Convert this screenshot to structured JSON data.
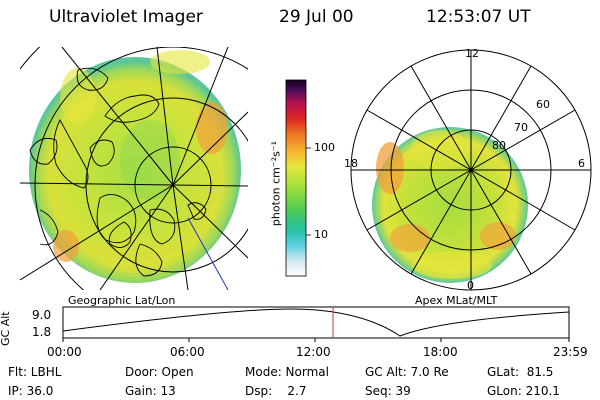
{
  "header": {
    "instrument": "Ultraviolet Imager",
    "date": "29 Jul 00",
    "time": "12:53:07 UT"
  },
  "left_panel": {
    "caption": "Geographic Lat/Lon"
  },
  "right_panel": {
    "caption": "Apex MLat/MLT",
    "mlt_labels": {
      "top": "12",
      "left": "18",
      "right": "6",
      "bottom": "0"
    },
    "mlat_labels": [
      "60",
      "70",
      "80"
    ]
  },
  "colorbar": {
    "label": "photon cm⁻²s⁻¹",
    "ticks": [
      "100",
      "10"
    ]
  },
  "altitude_plot": {
    "ylabel": "GC Alt",
    "yticks": [
      "9.0",
      "1.8"
    ],
    "xticks": [
      "00:00",
      "06:00",
      "12:00",
      "18:00",
      "23:59"
    ],
    "current_marker_color": "#c0392b"
  },
  "footer": {
    "row1": {
      "flt": "Flt: LBHL",
      "door": "Door: Open",
      "mode": "Mode: Normal",
      "gcalt": "GC Alt: 7.0 Re",
      "glat": "GLat:  81.5"
    },
    "row2": {
      "ip": "IP: 36.0",
      "gain": "Gain: 13",
      "dsp": "Dsp:    2.7",
      "seq": "Seq: 39",
      "glon": "GLon: 210.1"
    }
  },
  "colors": {
    "aurora_green": "#99dd33",
    "aurora_yellow": "#e6e63c",
    "aurora_orange": "#f0a03c",
    "edge_teal": "#55c8a0"
  }
}
